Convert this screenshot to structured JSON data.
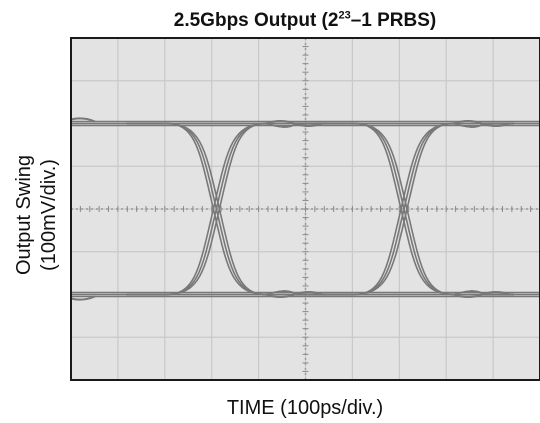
{
  "chart_data": {
    "type": "line",
    "title": {
      "prefix": "2.5Gbps Output (2",
      "superscript": "23",
      "suffix": "–1 PRBS)"
    },
    "xlabel": "TIME (100ps/div.)",
    "ylabel_line1": "Output Swing",
    "ylabel_line2": "(100mV/div.)",
    "x_divisions": 10,
    "y_divisions": 8,
    "grid": true,
    "x_unit": "ps",
    "y_unit": "mV",
    "x_per_div": 100,
    "y_per_div": 100,
    "x_range_ps": [
      0,
      1000
    ],
    "y_range_mV": [
      -400,
      400
    ],
    "bit_period_ps": 400,
    "high_level_mV": 200,
    "low_level_mV": -200,
    "crossing_times_ps": [
      310,
      710
    ],
    "series": [],
    "colors": {
      "trace": "#787878",
      "grid": "#c8c8c8",
      "frame": "#1a1a1a"
    }
  }
}
